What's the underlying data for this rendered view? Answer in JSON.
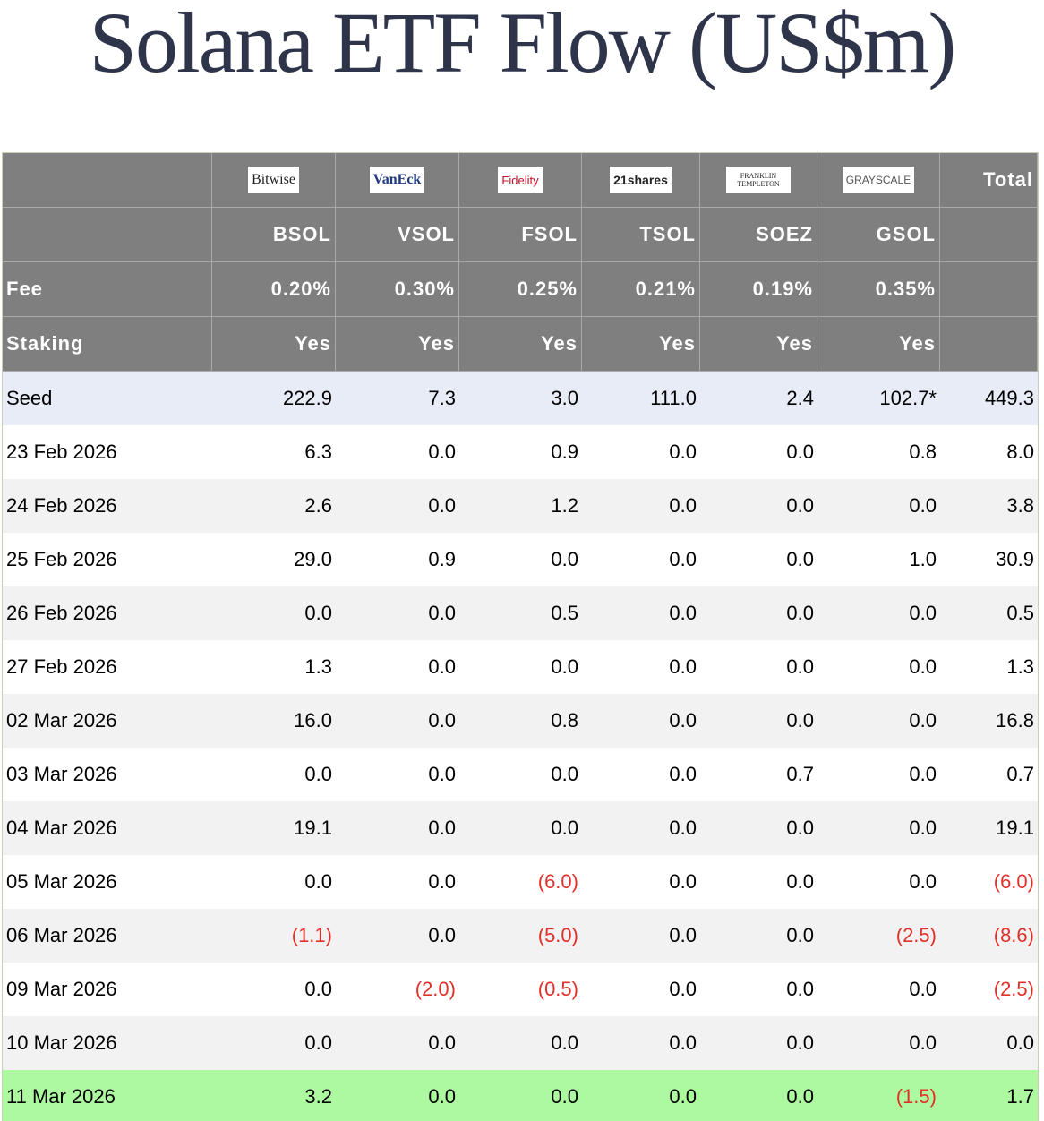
{
  "title": "Solana ETF Flow (US$m)",
  "table": {
    "logos": [
      "Bitwise",
      "VanEck",
      "Fidelity",
      "21shares",
      "FRANKLIN TEMPLETON",
      "GRAYSCALE"
    ],
    "total": "Total",
    "tickers": [
      "BSOL",
      "VSOL",
      "FSOL",
      "TSOL",
      "SOEZ",
      "GSOL"
    ],
    "fee": {
      "label": "Fee",
      "values": [
        "0.20%",
        "0.30%",
        "0.25%",
        "0.21%",
        "0.19%",
        "0.35%"
      ]
    },
    "staking": {
      "label": "Staking",
      "values": [
        "Yes",
        "Yes",
        "Yes",
        "Yes",
        "Yes",
        "Yes"
      ]
    },
    "rows": [
      [
        "Seed",
        "222.9",
        "7.3",
        "3.0",
        "111.0",
        "2.4",
        "102.7*",
        "449.3"
      ],
      [
        "23 Feb 2026",
        "6.3",
        "0.0",
        "0.9",
        "0.0",
        "0.0",
        "0.8",
        "8.0"
      ],
      [
        "24 Feb 2026",
        "2.6",
        "0.0",
        "1.2",
        "0.0",
        "0.0",
        "0.0",
        "3.8"
      ],
      [
        "25 Feb 2026",
        "29.0",
        "0.9",
        "0.0",
        "0.0",
        "0.0",
        "1.0",
        "30.9"
      ],
      [
        "26 Feb 2026",
        "0.0",
        "0.0",
        "0.5",
        "0.0",
        "0.0",
        "0.0",
        "0.5"
      ],
      [
        "27 Feb 2026",
        "1.3",
        "0.0",
        "0.0",
        "0.0",
        "0.0",
        "0.0",
        "1.3"
      ],
      [
        "02 Mar 2026",
        "16.0",
        "0.0",
        "0.8",
        "0.0",
        "0.0",
        "0.0",
        "16.8"
      ],
      [
        "03 Mar 2026",
        "0.0",
        "0.0",
        "0.0",
        "0.0",
        "0.7",
        "0.0",
        "0.7"
      ],
      [
        "04 Mar 2026",
        "19.1",
        "0.0",
        "0.0",
        "0.0",
        "0.0",
        "0.0",
        "19.1"
      ],
      [
        "05 Mar 2026",
        "0.0",
        "0.0",
        "(6.0)",
        "0.0",
        "0.0",
        "0.0",
        "(6.0)"
      ],
      [
        "06 Mar 2026",
        "(1.1)",
        "0.0",
        "(5.0)",
        "0.0",
        "0.0",
        "(2.5)",
        "(8.6)"
      ],
      [
        "09 Mar 2026",
        "0.0",
        "(2.0)",
        "(0.5)",
        "0.0",
        "0.0",
        "0.0",
        "(2.5)"
      ],
      [
        "10 Mar 2026",
        "0.0",
        "0.0",
        "0.0",
        "0.0",
        "0.0",
        "0.0",
        "0.0"
      ],
      [
        "11 Mar 2026",
        "3.2",
        "0.0",
        "0.0",
        "0.0",
        "0.0",
        "(1.5)",
        "1.7"
      ]
    ]
  }
}
